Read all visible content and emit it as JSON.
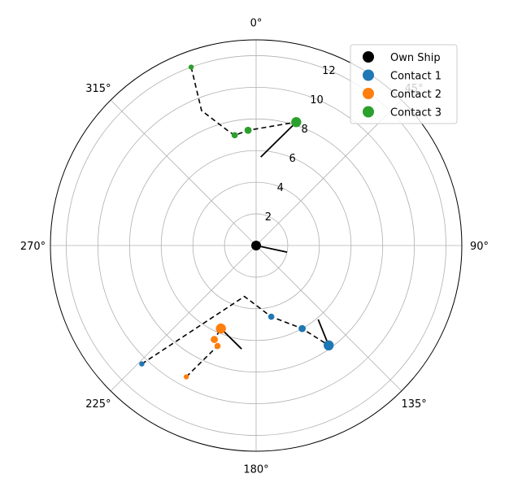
{
  "chart_data": {
    "type": "polar-scatter",
    "title": "",
    "theta_direction": "clockwise",
    "theta_zero": "north",
    "rlim": [
      0,
      13
    ],
    "grid": true,
    "theta_tick_labels": [
      "0°",
      "45°",
      "90°",
      "135°",
      "180°",
      "225°",
      "270°",
      "315°"
    ],
    "theta_tick_values": [
      0,
      45,
      90,
      135,
      180,
      225,
      270,
      315
    ],
    "r_tick_labels": [
      "2",
      "4",
      "6",
      "8",
      "10",
      "12"
    ],
    "r_tick_values": [
      2,
      4,
      6,
      8,
      10,
      12
    ],
    "r_label_angle_deg": 22.5,
    "legend_position": "top-right",
    "colors": {
      "own_ship": "#000000",
      "contact_1": "#1f77b4",
      "contact_2": "#ff7f0e",
      "contact_3": "#2ca02c",
      "track": "#000000"
    },
    "series": [
      {
        "name": "Own Ship",
        "key": "own_ship",
        "points": [
          {
            "bearing": 0,
            "range": 0
          }
        ],
        "heading_line": {
          "from": {
            "bearing": 0,
            "range": 0
          },
          "to": {
            "bearing": 102,
            "range": 2.0
          }
        }
      },
      {
        "name": "Contact 1",
        "key": "contact_1",
        "points": [
          {
            "bearing": 224,
            "range": 10.4
          },
          {
            "bearing": 168,
            "range": 4.6
          },
          {
            "bearing": 151,
            "range": 6.0
          },
          {
            "bearing": 144,
            "range": 7.8
          }
        ],
        "track_polyline": [
          {
            "bearing": 224,
            "range": 10.4
          },
          {
            "bearing": 193,
            "range": 3.3
          },
          {
            "bearing": 168,
            "range": 4.6
          },
          {
            "bearing": 151,
            "range": 6.0
          },
          {
            "bearing": 144,
            "range": 7.8
          }
        ],
        "heading_line": {
          "from": {
            "bearing": 144,
            "range": 7.8
          },
          "to": {
            "bearing": 140,
            "range": 6.1
          }
        }
      },
      {
        "name": "Contact 2",
        "key": "contact_2",
        "points": [
          {
            "bearing": 208,
            "range": 9.4
          },
          {
            "bearing": 201,
            "range": 6.8
          },
          {
            "bearing": 204,
            "range": 6.5
          },
          {
            "bearing": 203,
            "range": 5.7
          }
        ],
        "track_polyline": [
          {
            "bearing": 208,
            "range": 9.4
          },
          {
            "bearing": 201,
            "range": 6.8
          },
          {
            "bearing": 204,
            "range": 6.5
          },
          {
            "bearing": 203,
            "range": 5.7
          }
        ],
        "heading_line": {
          "from": {
            "bearing": 203,
            "range": 5.7
          },
          "to": {
            "bearing": 188,
            "range": 6.6
          }
        }
      },
      {
        "name": "Contact 3",
        "key": "contact_3",
        "points": [
          {
            "bearing": 340,
            "range": 12.0
          },
          {
            "bearing": 349,
            "range": 7.1
          },
          {
            "bearing": 356,
            "range": 7.3
          },
          {
            "bearing": 18,
            "range": 8.2
          }
        ],
        "track_polyline": [
          {
            "bearing": 340,
            "range": 12.0
          },
          {
            "bearing": 338,
            "range": 9.2
          },
          {
            "bearing": 346,
            "range": 7.5
          },
          {
            "bearing": 349,
            "range": 7.1
          },
          {
            "bearing": 356,
            "range": 7.3
          },
          {
            "bearing": 18,
            "range": 8.2
          }
        ],
        "heading_line": {
          "from": {
            "bearing": 18,
            "range": 8.2
          },
          "to": {
            "bearing": 3,
            "range": 5.6
          }
        }
      }
    ]
  }
}
